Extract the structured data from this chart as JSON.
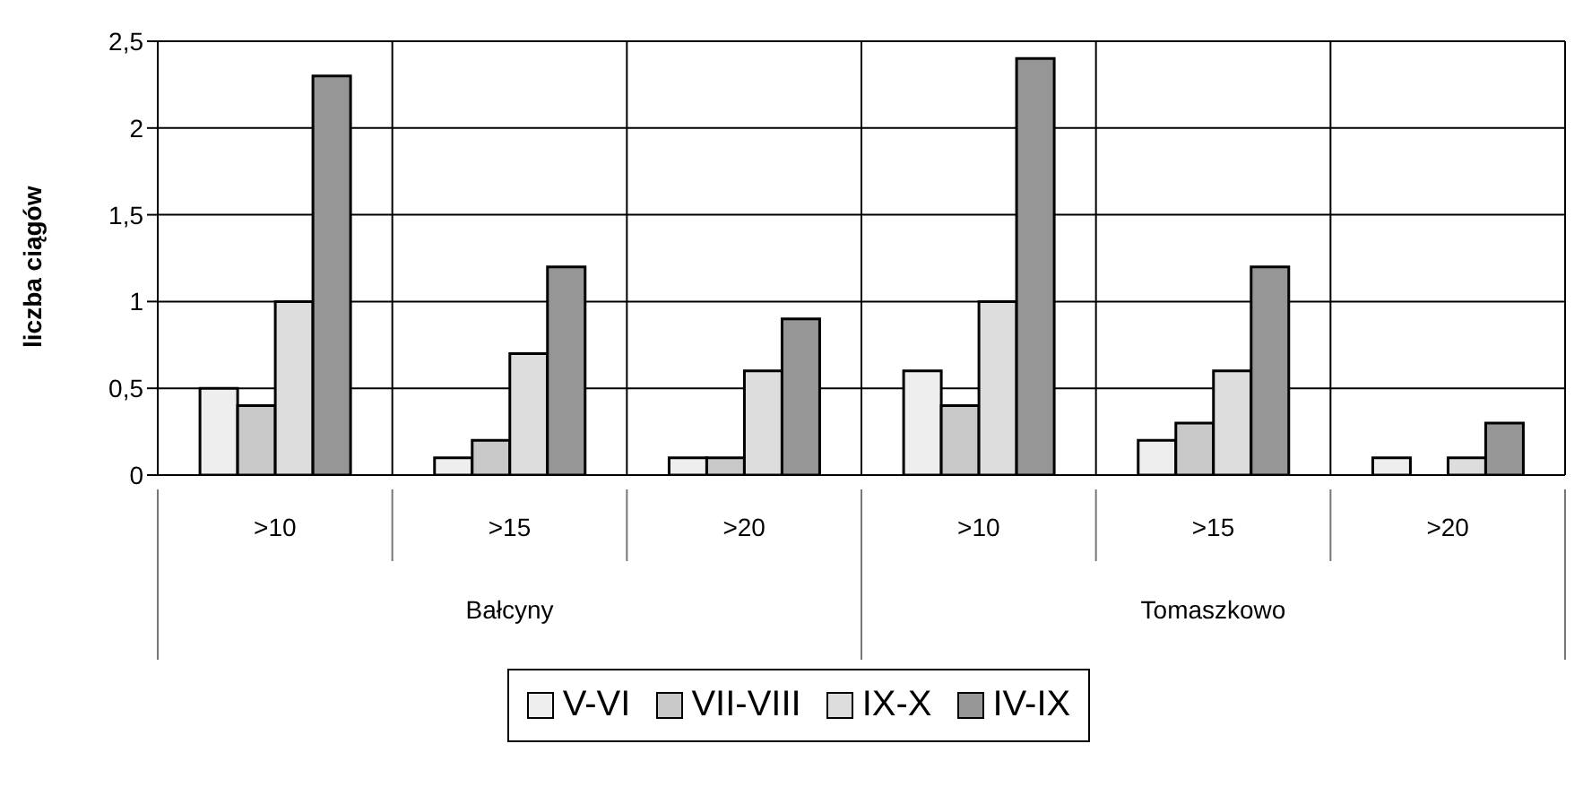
{
  "chart_data": {
    "type": "bar",
    "ylabel": "liczba ciągów",
    "categories": [
      ">10",
      ">15",
      ">20",
      ">10",
      ">15",
      ">20"
    ],
    "annotations": [
      "Bałcyny",
      "Tomaszkowo"
    ],
    "series": [
      {
        "name": "V-VI",
        "color": "#eeeeee",
        "values": [
          0.5,
          0.1,
          0.1,
          0.6,
          0.2,
          0.1
        ]
      },
      {
        "name": "VII-VIII",
        "color": "#c8c8c8",
        "values": [
          0.4,
          0.2,
          0.1,
          0.4,
          0.3,
          0
        ]
      },
      {
        "name": "IX-X",
        "color": "#dddddd",
        "values": [
          1.0,
          0.7,
          0.6,
          1.0,
          0.6,
          0.1
        ]
      },
      {
        "name": "IV-IX",
        "color": "#969696",
        "values": [
          2.3,
          1.2,
          0.9,
          2.4,
          1.2,
          0.3
        ]
      }
    ],
    "ylim": [
      0,
      2.5
    ],
    "yticks": [
      0,
      {
        "value": 0.5,
        "label": "0,5"
      },
      1,
      {
        "value": 1.5,
        "label": "1,5"
      },
      2,
      {
        "value": 2.5,
        "label": "2,5"
      }
    ],
    "grid": true,
    "legend": "bottom"
  }
}
